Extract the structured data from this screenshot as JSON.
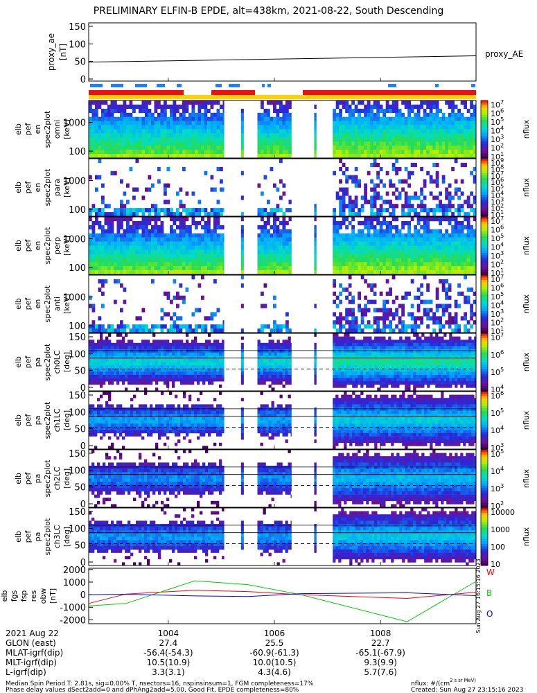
{
  "chart_data": {
    "type": "multi-panel spectrogram",
    "title": "PRELIMINARY ELFIN-B EPDE, alt=438km, 2021-08-22, South Descending",
    "time_range_min": [
      1002.5,
      1009.8
    ],
    "panels": [
      {
        "id": "proxy_ae",
        "ylabel": [
          "proxy_ae",
          "[nT]"
        ],
        "yticks": [
          "150",
          "100",
          "50",
          "0"
        ],
        "ylim": [
          0,
          150
        ],
        "series": [
          {
            "name": "proxy_AE",
            "x": [
              1002.5,
              1009.8
            ],
            "y": [
              48,
              66
            ]
          }
        ]
      },
      {
        "id": "en_omni",
        "ylabel": [
          "elb",
          "pef",
          "en",
          "spec2plot",
          "omni",
          "[keV]"
        ],
        "yticks": [
          "1000",
          "100"
        ],
        "scale": "log",
        "cbar": [
          "10^7",
          "10^6",
          "10^5",
          "10^4",
          "10^3",
          "10^2",
          "10^1"
        ],
        "cbar_label": "nflux"
      },
      {
        "id": "en_perp",
        "ylabel": [
          "elb",
          "pef",
          "en",
          "spec2plot",
          "para",
          "[keV]"
        ],
        "yticks": [
          "1000",
          "100"
        ],
        "scale": "log",
        "cbar": [
          "10^9",
          "10^8",
          "10^7",
          "10^6",
          "10^5",
          "10^4",
          "10^3",
          "10^2",
          "10^1"
        ],
        "cbar_label": "nflux"
      },
      {
        "id": "en_para",
        "ylabel": [
          "elb",
          "pef",
          "en",
          "spec2plot",
          "perp",
          "[keV]"
        ],
        "yticks": [
          "1000",
          "100"
        ],
        "scale": "log",
        "cbar": [
          "10^7",
          "10^6",
          "10^5",
          "10^4",
          "10^3",
          "10^2",
          "10^1"
        ],
        "cbar_label": "nflux"
      },
      {
        "id": "en_anti",
        "ylabel": [
          "elb",
          "pef",
          "en",
          "spec2plot",
          "anti",
          "[keV]"
        ],
        "yticks": [
          "1000",
          "100"
        ],
        "scale": "log",
        "cbar": [
          "10^7",
          "10^6",
          "10^5",
          "10^4",
          "10^3",
          "10^2",
          "10^1"
        ],
        "cbar_label": "nflux"
      },
      {
        "id": "pa_ch0",
        "ylabel": [
          "elb",
          "pef",
          "pa",
          "spec2plot",
          "ch0LC",
          "[deg]"
        ],
        "yticks": [
          "150",
          "100",
          "50",
          "0"
        ],
        "cbar": [
          "10^7",
          "10^6",
          "10^5",
          "10^4"
        ],
        "cbar_label": "nflux"
      },
      {
        "id": "pa_ch1",
        "ylabel": [
          "elb",
          "pef",
          "pa",
          "spec2plot",
          "ch1LC",
          "[deg]"
        ],
        "yticks": [
          "150",
          "100",
          "50",
          "0"
        ],
        "cbar": [
          "10^6",
          "10^5",
          "10^4",
          "10^3"
        ],
        "cbar_label": "nflux"
      },
      {
        "id": "pa_ch2",
        "ylabel": [
          "elb",
          "pef",
          "pa",
          "spec2plot",
          "ch2LC",
          "[deg]"
        ],
        "yticks": [
          "150",
          "100",
          "50",
          "0"
        ],
        "cbar": [
          "10^5",
          "10^4",
          "10^3",
          "10^2"
        ],
        "cbar_label": "nflux"
      },
      {
        "id": "pa_ch3",
        "ylabel": [
          "elb",
          "pef",
          "pa",
          "spec2plot",
          "ch3LC",
          "[deg]"
        ],
        "yticks": [
          "150",
          "100",
          "50",
          "0"
        ],
        "cbar": [
          "10000",
          "1000",
          "100",
          "10"
        ],
        "cbar_label": "nflux"
      },
      {
        "id": "fgs",
        "ylabel": [
          "elb",
          "fgs",
          "fsp",
          "res",
          "obw",
          "[nT]"
        ],
        "yticks": [
          "2000",
          "1000",
          "0",
          "-1000",
          "-2000"
        ],
        "ylim": [
          -2200,
          2100
        ],
        "series": [
          {
            "name": "W",
            "color": "#ff0000",
            "x": [
              1002.5,
              1003.2,
              1004.5,
              1005.5,
              1006.5,
              1008.5,
              1009.8
            ],
            "y": [
              -700,
              50,
              350,
              250,
              0,
              -300,
              200
            ]
          },
          {
            "name": "B",
            "color": "#00cc00",
            "x": [
              1002.5,
              1003.2,
              1004.5,
              1005.5,
              1006.5,
              1008.5,
              1009.8
            ],
            "y": [
              -900,
              -700,
              1100,
              800,
              0,
              -2150,
              1050
            ]
          },
          {
            "name": "O",
            "color": "#0000ff",
            "x": [
              1002.5,
              1003.2,
              1004.5,
              1005.5,
              1006.5,
              1008.5,
              1009.8
            ],
            "y": [
              0,
              30,
              -100,
              -150,
              80,
              150,
              -80
            ]
          }
        ]
      }
    ],
    "x_axis": {
      "row_labels": [
        "2021 Aug 22",
        "GLON (east)",
        "MLAT-igrf(dip)",
        "MLT-igrf(dip)",
        "L-igrf(dip)"
      ],
      "ticks": [
        {
          "time": "1004",
          "values": [
            "27.4",
            "-56.4(-54.3)",
            "10.5(10.9)",
            "3.3(3.1)"
          ]
        },
        {
          "time": "1006",
          "values": [
            "25.5",
            "-60.9(-61.3)",
            "10.0(10.5)",
            "4.3(4.6)"
          ]
        },
        {
          "time": "1008",
          "values": [
            "22.7",
            "-65.1(-67.9)",
            "9.3(9.9)",
            "5.7(7.6)"
          ]
        }
      ]
    },
    "side_label": "Sun Aug 27 16:15:16 2023",
    "footer": {
      "line1": "Median Spin Period T: 2.81s, sig=0.00% T, nsectors=16, nspinsinsum=1, FGM completeness=17%",
      "line2": "Phase delay values dSect2add=0 and dPhAng2add=5.00, Good Fit, EPDE completeness=80%",
      "units": "nflux: #/(cm^2 s sr MeV)",
      "created": "Created: Sun Aug 27 23:15:16 2023"
    }
  }
}
